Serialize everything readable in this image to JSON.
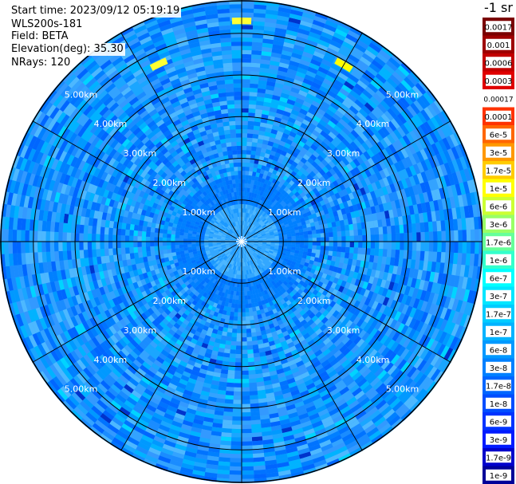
{
  "info": {
    "start_time": "Start time: 2023/09/12 05:19:19",
    "instrument": "WLS200s-181",
    "field": "Field: BETA",
    "elevation": "Elevation(deg): 35.30",
    "nrays": "NRays: 120"
  },
  "colorbar": {
    "units": "-1 sr",
    "entries": [
      {
        "label": "0.0017",
        "color": "#7a0000"
      },
      {
        "label": "0.001",
        "color": "#9e0000"
      },
      {
        "label": "0.0006",
        "color": "#c20000"
      },
      {
        "label": "0.0003",
        "color": "#e00000"
      },
      {
        "label": "0.00017",
        "color": "#ffffff"
      },
      {
        "label": "0.0001",
        "color": "#ff3300"
      },
      {
        "label": "6e-5",
        "color": "#ff6600"
      },
      {
        "label": "3e-5",
        "color": "#ff9900"
      },
      {
        "label": "1.7e-5",
        "color": "#ffcc00"
      },
      {
        "label": "1e-5",
        "color": "#ffff00"
      },
      {
        "label": "6e-6",
        "color": "#ccff33"
      },
      {
        "label": "3e-6",
        "color": "#99ff66"
      },
      {
        "label": "1.7e-6",
        "color": "#66ff99"
      },
      {
        "label": "1e-6",
        "color": "#33ffcc"
      },
      {
        "label": "6e-7",
        "color": "#00ffff"
      },
      {
        "label": "3e-7",
        "color": "#00e6ff"
      },
      {
        "label": "1.7e-7",
        "color": "#00ccff"
      },
      {
        "label": "1e-7",
        "color": "#00b3ff"
      },
      {
        "label": "6e-8",
        "color": "#0099ff"
      },
      {
        "label": "3e-8",
        "color": "#0080ff"
      },
      {
        "label": "1.7e-8",
        "color": "#0066ff"
      },
      {
        "label": "1e-8",
        "color": "#004dff"
      },
      {
        "label": "6e-9",
        "color": "#0033ff"
      },
      {
        "label": "3e-9",
        "color": "#001aff"
      },
      {
        "label": "1.7e-9",
        "color": "#0000cc"
      },
      {
        "label": "1e-9",
        "color": "#000099"
      }
    ]
  },
  "chart_data": {
    "type": "heatmap",
    "projection": "polar",
    "range_rings_km": [
      1,
      2,
      3,
      4,
      5
    ],
    "ring_labels": [
      "1.00km",
      "2.00km",
      "3.00km",
      "4.00km",
      "5.00km"
    ],
    "max_range_km": 5.8,
    "spoke_angles_deg": [
      0,
      30,
      60,
      90,
      120,
      150,
      180,
      210,
      240,
      270,
      300,
      330
    ],
    "background_color": "#3f9cff",
    "hotspots": [
      {
        "azimuth_deg": 0,
        "range_km": 5.3,
        "color": "#ffff33"
      },
      {
        "azimuth_deg": 30,
        "range_km": 4.9,
        "color": "#ffff00"
      },
      {
        "azimuth_deg": 335,
        "range_km": 4.7,
        "color": "#ffff33"
      }
    ]
  }
}
